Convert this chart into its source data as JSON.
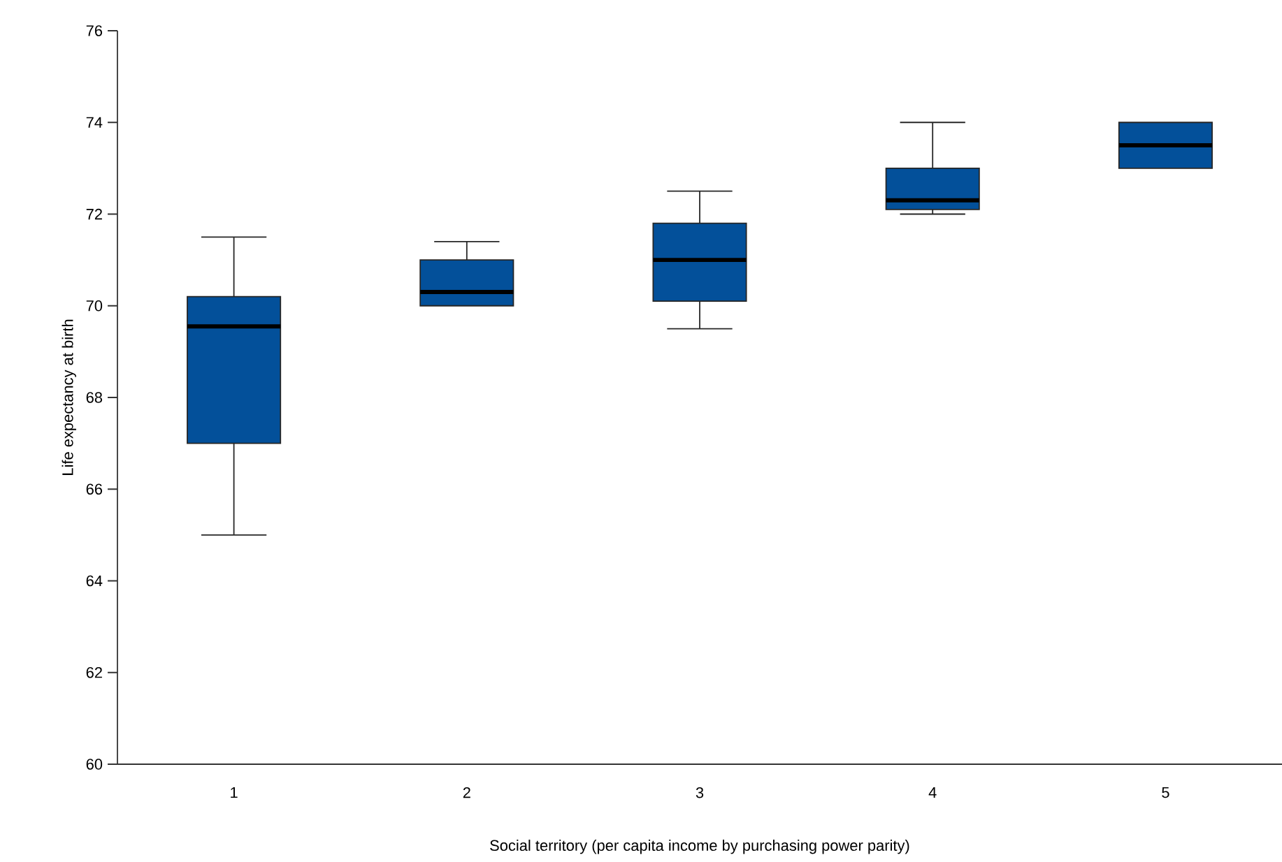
{
  "chart_data": {
    "type": "box",
    "xlabel": "Social territory (per capita income by purchasing power parity)",
    "ylabel": "Life expectancy at birth",
    "categories": [
      "1",
      "2",
      "3",
      "4",
      "5"
    ],
    "boxes": [
      {
        "low": 65.0,
        "q1": 67.0,
        "median": 69.55,
        "q3": 70.2,
        "high": 71.5
      },
      {
        "low": 70.0,
        "q1": 70.0,
        "median": 70.3,
        "q3": 71.0,
        "high": 71.4
      },
      {
        "low": 69.5,
        "q1": 70.1,
        "median": 71.0,
        "q3": 71.8,
        "high": 72.5
      },
      {
        "low": 72.0,
        "q1": 72.1,
        "median": 72.3,
        "q3": 73.0,
        "high": 74.0
      },
      {
        "low": 73.0,
        "q1": 73.0,
        "median": 73.5,
        "q3": 74.0,
        "high": 74.0
      }
    ],
    "color": "#03509a",
    "ylim": [
      60,
      76
    ],
    "yticks": [
      60,
      62,
      64,
      66,
      68,
      70,
      72,
      74,
      76
    ]
  }
}
